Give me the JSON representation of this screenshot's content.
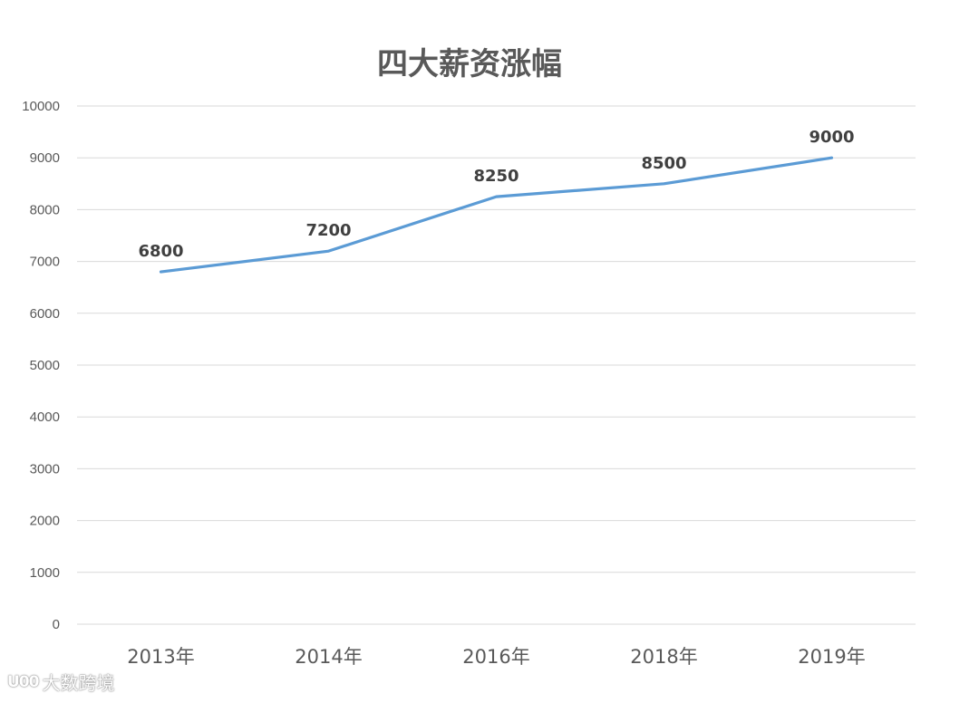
{
  "chart_data": {
    "type": "line",
    "title": "四大薪资涨幅",
    "xlabel": "",
    "ylabel": "",
    "categories": [
      "2013年",
      "2014年",
      "2016年",
      "2018年",
      "2019年"
    ],
    "series": [
      {
        "values": [
          6800,
          7200,
          8250,
          8500,
          9000
        ],
        "color": "#5b9bd5"
      }
    ],
    "data_labels": [
      "6800",
      "7200",
      "8250",
      "8500",
      "9000"
    ],
    "ylim": [
      0,
      10000
    ],
    "yticks": [
      "0",
      "1000",
      "2000",
      "3000",
      "4000",
      "5000",
      "6000",
      "7000",
      "8000",
      "9000",
      "10000"
    ],
    "grid": true,
    "legend": "none"
  },
  "watermark": {
    "logo": "U00",
    "text": "大数跨境"
  }
}
